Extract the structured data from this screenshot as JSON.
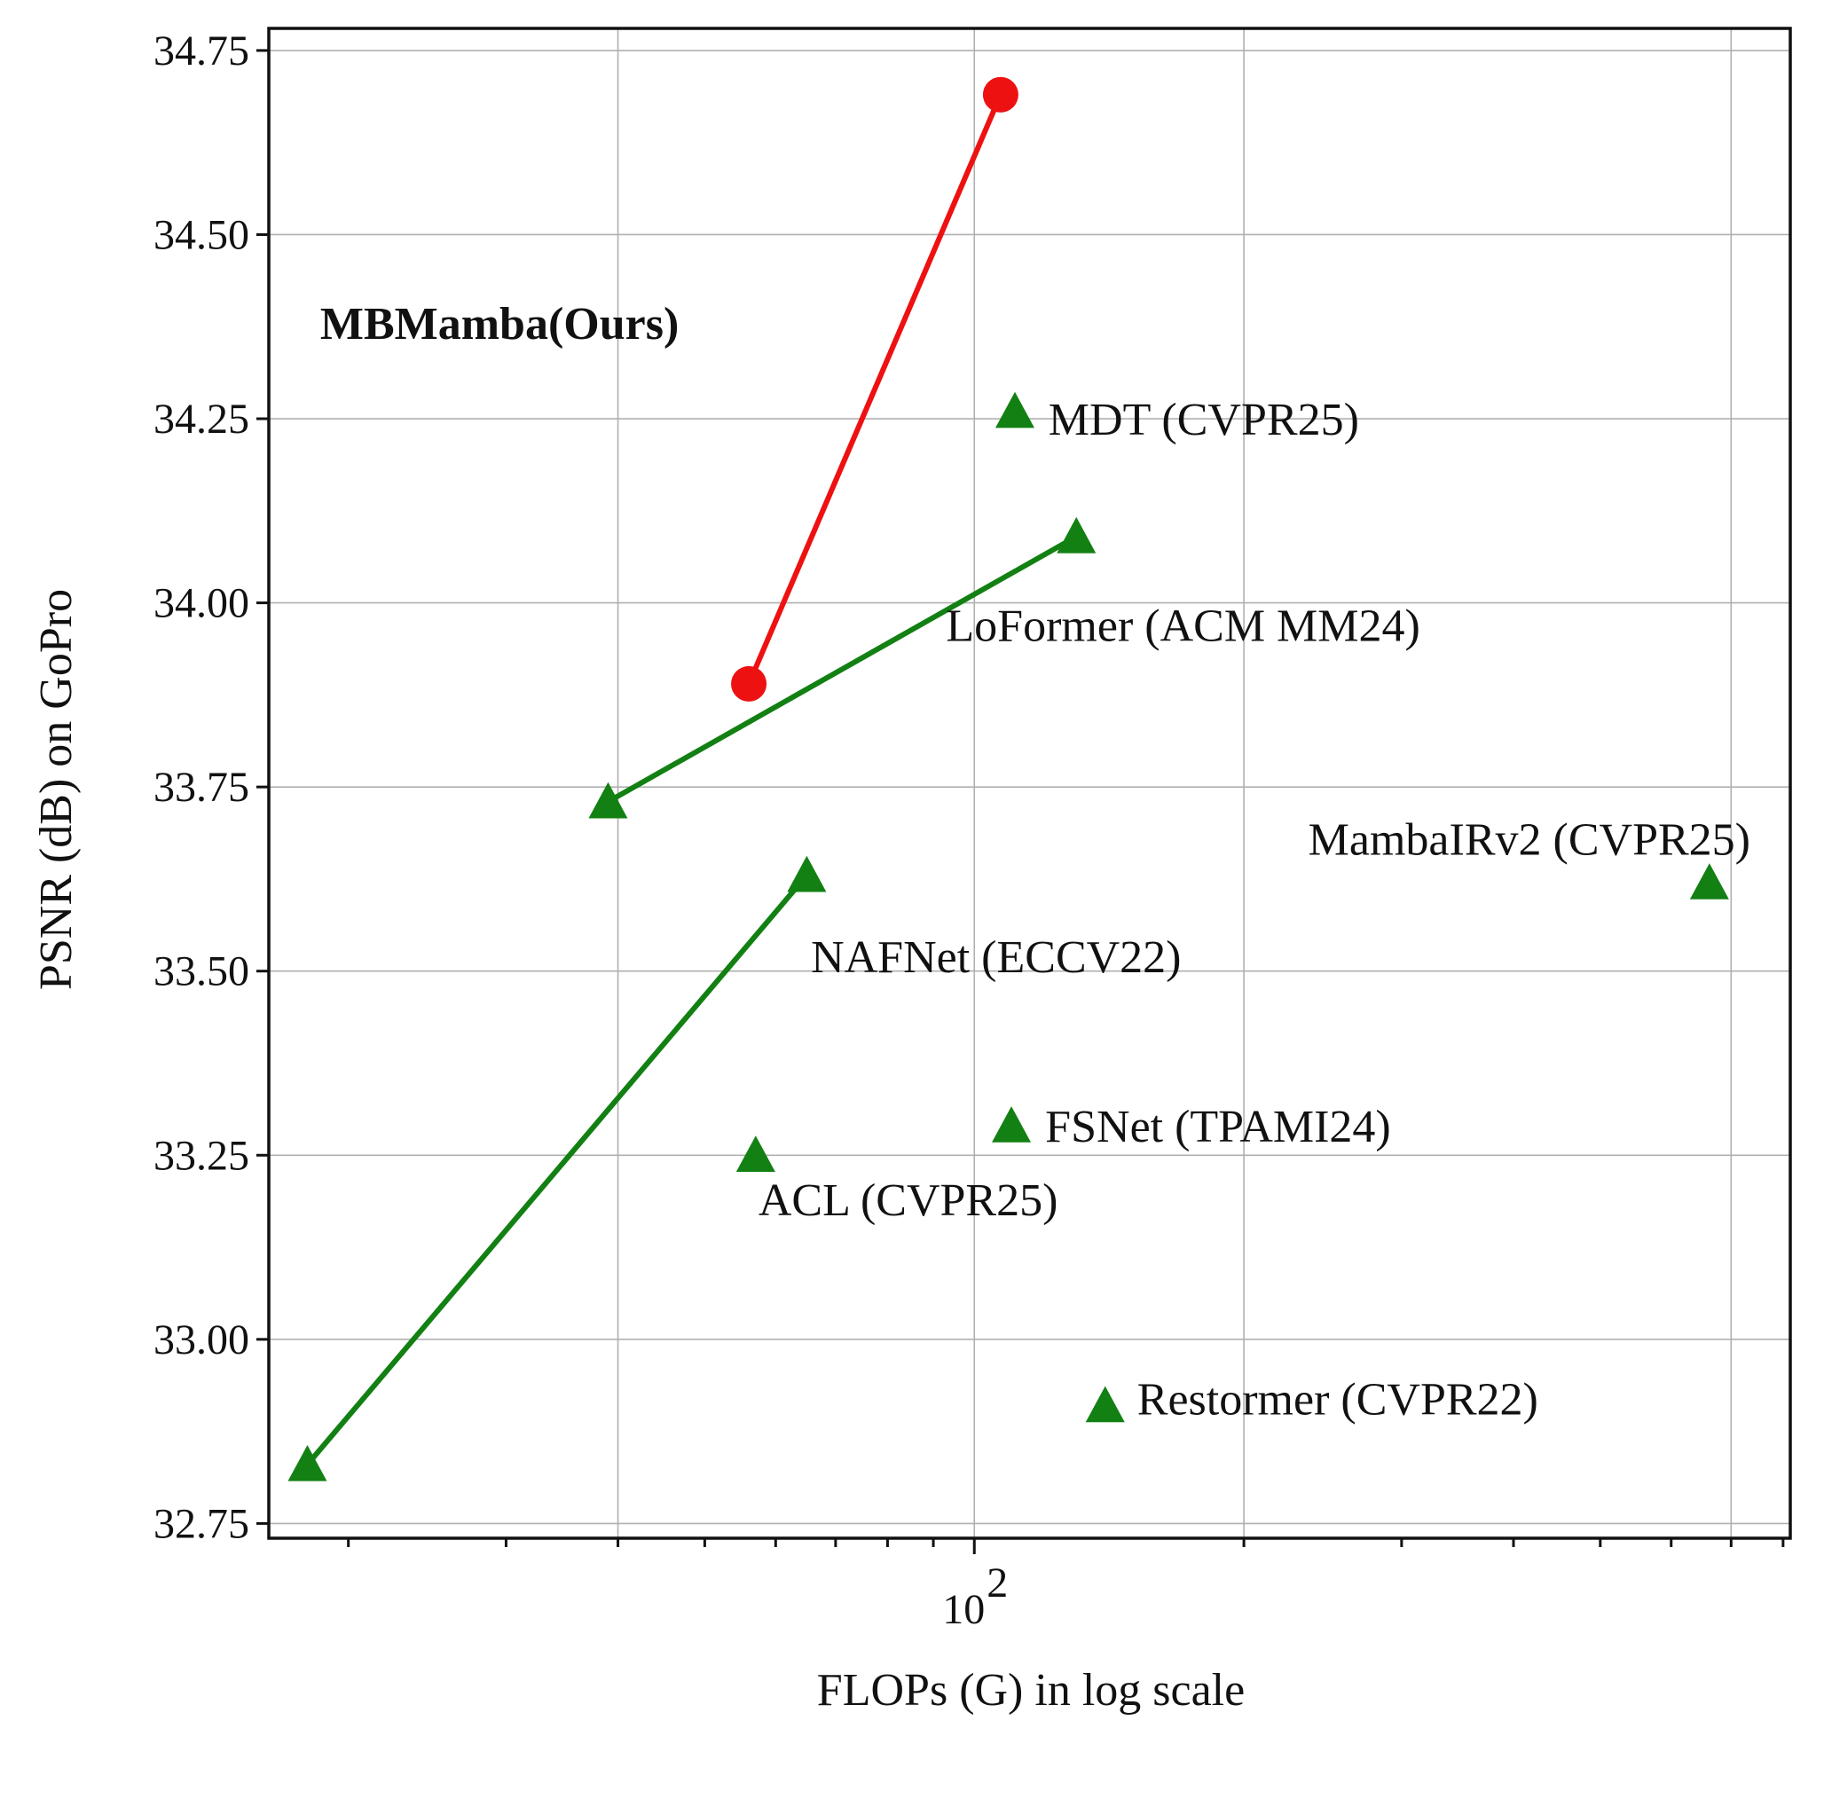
{
  "chart_data": {
    "type": "scatter",
    "title": "",
    "xlabel": "FLOPs (G) in log scale",
    "ylabel": "PSNR (dB) on GoPro",
    "x_scale": "log",
    "xlim": [
      16.3,
      815
    ],
    "ylim": [
      32.73,
      34.78
    ],
    "grid": true,
    "y_ticks": [
      "32.75",
      "33.00",
      "33.25",
      "33.50",
      "33.75",
      "34.00",
      "34.25",
      "34.50",
      "34.75"
    ],
    "x_major_tick": {
      "value": 100,
      "base": "10",
      "exponent": "2"
    },
    "x_grid_values": [
      40,
      100,
      200,
      700
    ],
    "x_minor_ticks": [
      20,
      30,
      40,
      50,
      60,
      70,
      80,
      90,
      200,
      300,
      400,
      500,
      600,
      700,
      800
    ],
    "colors": {
      "ours": "#ee1111",
      "others": "#128012"
    },
    "lines": [
      {
        "color": "#ee1111",
        "marker": "circle",
        "points": [
          {
            "x": 56,
            "y": 33.89
          },
          {
            "x": 107,
            "y": 34.69
          }
        ]
      },
      {
        "color": "#128012",
        "marker": "triangle",
        "points": [
          {
            "x": 39,
            "y": 33.73
          },
          {
            "x": 130,
            "y": 34.09
          }
        ]
      },
      {
        "color": "#128012",
        "marker": "triangle",
        "points": [
          {
            "x": 18,
            "y": 32.83
          },
          {
            "x": 65,
            "y": 33.63
          }
        ]
      }
    ],
    "points": [
      {
        "x": 111,
        "y": 34.26,
        "color": "#128012",
        "marker": "triangle"
      },
      {
        "x": 662,
        "y": 33.62,
        "color": "#128012",
        "marker": "triangle"
      },
      {
        "x": 110,
        "y": 33.29,
        "color": "#128012",
        "marker": "triangle"
      },
      {
        "x": 57,
        "y": 33.25,
        "color": "#128012",
        "marker": "triangle"
      },
      {
        "x": 140,
        "y": 32.91,
        "color": "#128012",
        "marker": "triangle"
      }
    ],
    "annotations": [
      {
        "text": "MBMamba(Ours)",
        "x": 18.6,
        "y": 34.38,
        "bold": true
      },
      {
        "text": "MDT (CVPR25)",
        "x": 121,
        "y": 34.25,
        "bold": false
      },
      {
        "text": "LoFormer (ACM MM24)",
        "x": 93,
        "y": 33.97,
        "bold": false
      },
      {
        "text": "MambaIRv2 (CVPR25)",
        "x": 236,
        "y": 33.68,
        "bold": false
      },
      {
        "text": "NAFNet (ECCV22)",
        "x": 65.7,
        "y": 33.52,
        "bold": false
      },
      {
        "text": "FSNet (TPAMI24)",
        "x": 120,
        "y": 33.29,
        "bold": false
      },
      {
        "text": "ACL (CVPR25)",
        "x": 57.4,
        "y": 33.19,
        "bold": false
      },
      {
        "text": "Restormer (CVPR22)",
        "x": 152,
        "y": 32.92,
        "bold": false
      }
    ]
  }
}
